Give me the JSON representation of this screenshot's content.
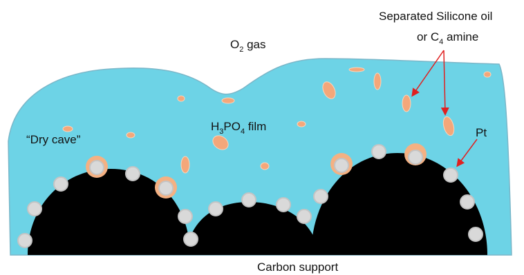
{
  "labels": {
    "separated": "Separated Silicone oil",
    "amine": [
      "or C",
      "4",
      " amine"
    ],
    "o2": [
      "O",
      "2",
      " gas"
    ],
    "film": [
      "H",
      "3",
      "PO",
      "4",
      " film"
    ],
    "dry_cave": "“Dry cave”",
    "pt": "Pt",
    "carbon": "Carbon support"
  }
}
